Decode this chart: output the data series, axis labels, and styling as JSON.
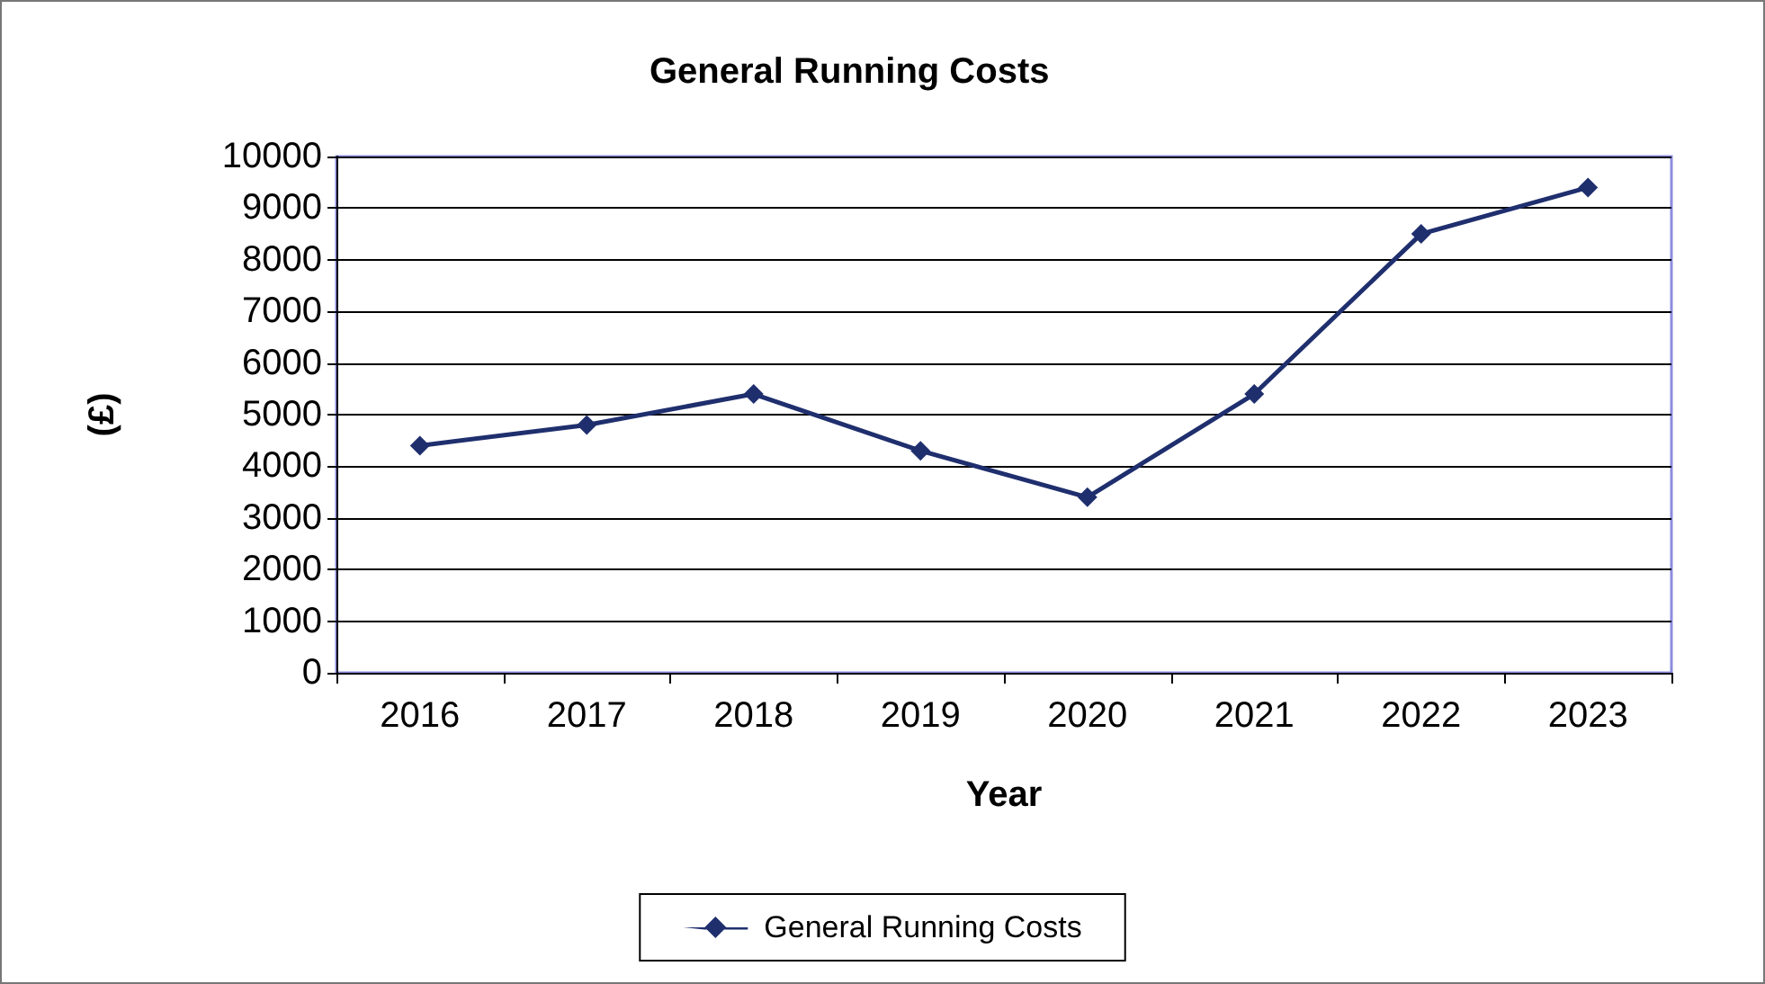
{
  "chart_data": {
    "type": "line",
    "title": "General Running Costs",
    "xlabel": "Year",
    "ylabel": "(£)",
    "categories": [
      "2016",
      "2017",
      "2018",
      "2019",
      "2020",
      "2021",
      "2022",
      "2023"
    ],
    "series": [
      {
        "name": "General Running Costs",
        "color": "#1f2f6e",
        "values": [
          4400,
          4800,
          5400,
          4300,
          3400,
          5400,
          8500,
          9400
        ]
      }
    ],
    "ylim": [
      0,
      10000
    ],
    "yticks": [
      0,
      1000,
      2000,
      3000,
      4000,
      5000,
      6000,
      7000,
      8000,
      9000,
      10000
    ],
    "grid": "y",
    "legend": "bottom",
    "marker": "diamond",
    "line_style": "solid"
  }
}
